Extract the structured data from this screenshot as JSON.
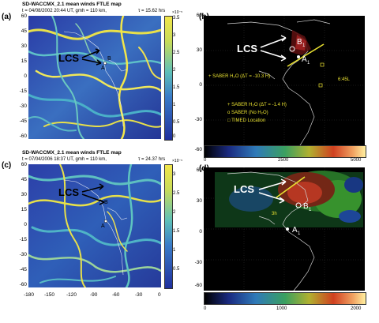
{
  "panel_a": {
    "title": "SD-WACCMX_2.1 mean winds FTLE map",
    "subtitle": "t = 04/08/2002 20:44 UT, gmh = 110 km,",
    "tau": "τ = 15.62 hrs",
    "label": "(a)",
    "lcs": "LCS",
    "marker_b": "B",
    "marker_b_sub": "1",
    "marker_a": "A",
    "y_ticks": [
      "60",
      "45",
      "30",
      "15",
      "0",
      "-15",
      "-30",
      "-45",
      "-60"
    ],
    "cbar_ticks": [
      "3.5",
      "3",
      "2.5",
      "2",
      "1.5",
      "1",
      "0.5",
      "0"
    ],
    "cbar_exp": "×10⁻⁵"
  },
  "panel_b": {
    "label": "(b)",
    "lcs": "LCS",
    "marker_b": "B",
    "marker_b_sub": "1",
    "marker_a": "A",
    "marker_a_sub": "1",
    "y_ticks": [
      "60",
      "30",
      "0",
      "-30",
      "-60"
    ],
    "legend_top": "+  SABER H₂O  (ΔT = -10.3 H)",
    "legend_1": "+  SABER H₂O  (ΔT = -1.4 H)",
    "legend_2": "o  SABER (No H₂O)",
    "legend_3": "□  TIMED Location",
    "time_tag": "6:45L",
    "cbar_ticks": [
      "0",
      "2500",
      "5000"
    ]
  },
  "panel_c": {
    "title": "SD-WACCMX_2.1 mean winds FTLE map",
    "subtitle": "t = 07/04/2006 18:37 UT, gmh = 110 km,",
    "tau": "τ = 24.37 hrs",
    "label": "(c)",
    "lcs": "LCS",
    "marker_b": "B",
    "marker_b_sub": "2",
    "marker_a": "A",
    "y_ticks": [
      "60",
      "45",
      "30",
      "15",
      "0",
      "-15",
      "-30",
      "-45",
      "-60"
    ],
    "x_ticks": [
      "-180",
      "-150",
      "-120",
      "-90",
      "-60",
      "-30",
      "0"
    ],
    "cbar_ticks": [
      "3",
      "2.5",
      "2",
      "1.5",
      "1",
      "0.5"
    ],
    "cbar_exp": "×10⁻⁵"
  },
  "panel_d": {
    "label": "(d)",
    "lcs": "LCS",
    "marker_b": "B",
    "marker_b_sub": "1",
    "marker_a": "A",
    "marker_a_sub": "1",
    "y_ticks": [
      "60",
      "30",
      "0",
      "-30",
      "-60"
    ],
    "side_tag": "3h",
    "cbar_ticks": [
      "0",
      "1000",
      "2000"
    ]
  },
  "colors": {
    "ftle_low": "#1f2f9e",
    "ftle_mid": "#4aa8c8",
    "ftle_high": "#f2e64a",
    "map_bg": "#000000",
    "coast": "#cfcfcf",
    "arrow": "#ffffff",
    "cut_line": "#e8e030"
  }
}
